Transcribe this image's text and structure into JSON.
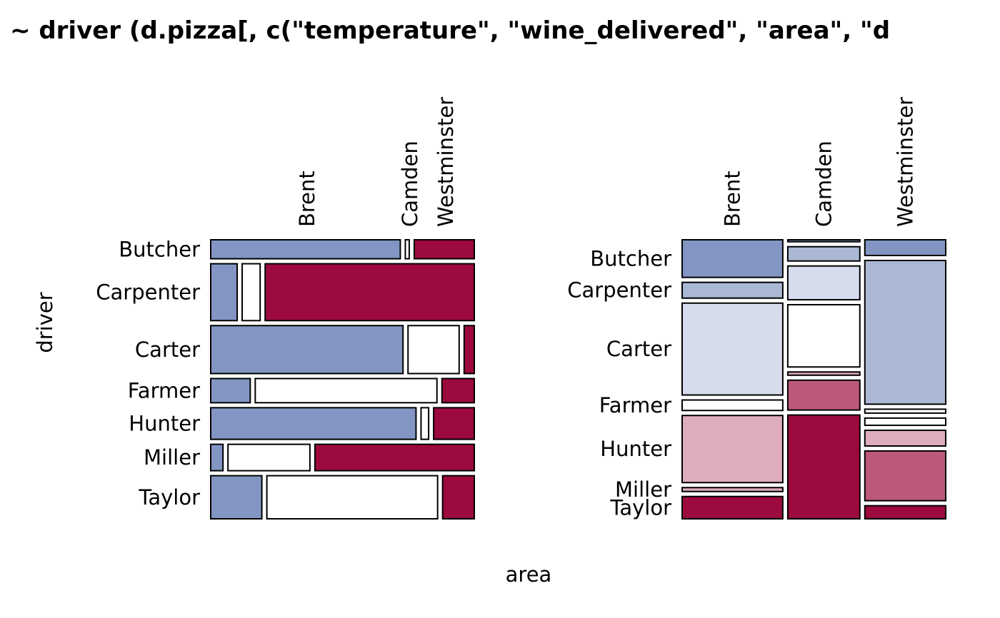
{
  "colors": {
    "blue_dark": "#8396C3",
    "blue_mid": "#ABB8D5",
    "blue_light": "#D6DCEB",
    "white": "#FFFFFF",
    "red_light": "#DEACBD",
    "red_mid": "#BB587B",
    "red_dark": "#9C0A3F",
    "stroke": "#000000"
  },
  "chart_data": {
    "title": "~ driver (d.pizza[, c(\"temperature\", \"wine_delivered\", \"area\", \"d",
    "xlabel": "area",
    "ylabel": "driver",
    "panels": [
      {
        "type": "mosaic",
        "columns": [
          "Brent",
          "Camden",
          "Westminster"
        ],
        "rows": [
          {
            "label": "Butcher",
            "weight": 0.0638,
            "shares": [
              0.7477,
              0.0154,
              0.2369
            ],
            "colors": [
              "blue_dark",
              "white",
              "red_dark"
            ]
          },
          {
            "label": "Carpenter",
            "weight": 0.1913,
            "shares": [
              0.1043,
              0.0709,
              0.8248
            ],
            "colors": [
              "blue_dark",
              "white",
              "red_dark"
            ]
          },
          {
            "label": "Carter",
            "weight": 0.1613,
            "shares": [
              0.7584,
              0.2016,
              0.04
            ],
            "colors": [
              "blue_dark",
              "white",
              "red_dark"
            ]
          },
          {
            "label": "Farmer",
            "weight": 0.0813,
            "shares": [
              0.1559,
              0.7166,
              0.1275
            ],
            "colors": [
              "blue_dark",
              "white",
              "red_dark"
            ]
          },
          {
            "label": "Hunter",
            "weight": 0.1063,
            "shares": [
              0.8097,
              0.03,
              0.1603
            ],
            "colors": [
              "blue_dark",
              "white",
              "red_dark"
            ]
          },
          {
            "label": "Miller",
            "weight": 0.0888,
            "shares": [
              0.0484,
              0.3231,
              0.6285
            ],
            "colors": [
              "blue_dark",
              "white",
              "red_dark"
            ]
          },
          {
            "label": "Taylor",
            "weight": 0.145,
            "shares": [
              0.2017,
              0.6734,
              0.1249
            ],
            "colors": [
              "blue_dark",
              "white",
              "red_dark"
            ]
          }
        ]
      },
      {
        "type": "mosaic",
        "columns": [
          "Brent",
          "Camden",
          "Westminster"
        ],
        "column_weights": [
          0.4108,
          0.2941,
          0.3301
        ],
        "row_labels": [
          "Butcher",
          "Carpenter",
          "Carter",
          "Farmer",
          "Hunter",
          "Miller",
          "Taylor"
        ],
        "cells": [
          [
            {
              "driver": "Butcher",
              "share": 0.1379,
              "color": "blue_dark"
            },
            {
              "driver": "Carpenter",
              "share": 0.0578,
              "color": "blue_mid"
            },
            {
              "driver": "Carter",
              "share": 0.3371,
              "color": "blue_light"
            },
            {
              "driver": "Farmer",
              "share": 0.0385,
              "color": "white"
            },
            {
              "driver": "Hunter",
              "share": 0.2462,
              "color": "red_light"
            },
            {
              "driver": "Miller",
              "share": 0.0144,
              "color": "red_light"
            },
            {
              "driver": "Taylor",
              "share": 0.0818,
              "color": "red_dark"
            }
          ],
          [
            {
              "driver": "Butcher",
              "share": 0.0072,
              "color": "blue_dark"
            },
            {
              "driver": "Carpenter",
              "share": 0.053,
              "color": "blue_mid"
            },
            {
              "driver": "Carter",
              "share": 0.1253,
              "color": "blue_light"
            },
            {
              "driver": "Farmer",
              "share": 0.2313,
              "color": "white"
            },
            {
              "driver": "Hunter",
              "share": 0.012,
              "color": "red_light"
            },
            {
              "driver": "Miller",
              "share": 0.1108,
              "color": "red_mid"
            },
            {
              "driver": "Taylor",
              "share": 0.3855,
              "color": "red_dark"
            }
          ],
          [
            {
              "driver": "Butcher",
              "share": 0.0578,
              "color": "blue_dark"
            },
            {
              "driver": "Carpenter",
              "share": 0.5289,
              "color": "blue_mid"
            },
            {
              "driver": "Carter",
              "share": 0.0144,
              "color": "white"
            },
            {
              "driver": "Farmer",
              "share": 0.0265,
              "color": "white"
            },
            {
              "driver": "Hunter",
              "share": 0.0578,
              "color": "red_light"
            },
            {
              "driver": "Miller",
              "share": 0.183,
              "color": "red_mid"
            },
            {
              "driver": "Taylor",
              "share": 0.0482,
              "color": "red_dark"
            }
          ]
        ]
      }
    ]
  }
}
